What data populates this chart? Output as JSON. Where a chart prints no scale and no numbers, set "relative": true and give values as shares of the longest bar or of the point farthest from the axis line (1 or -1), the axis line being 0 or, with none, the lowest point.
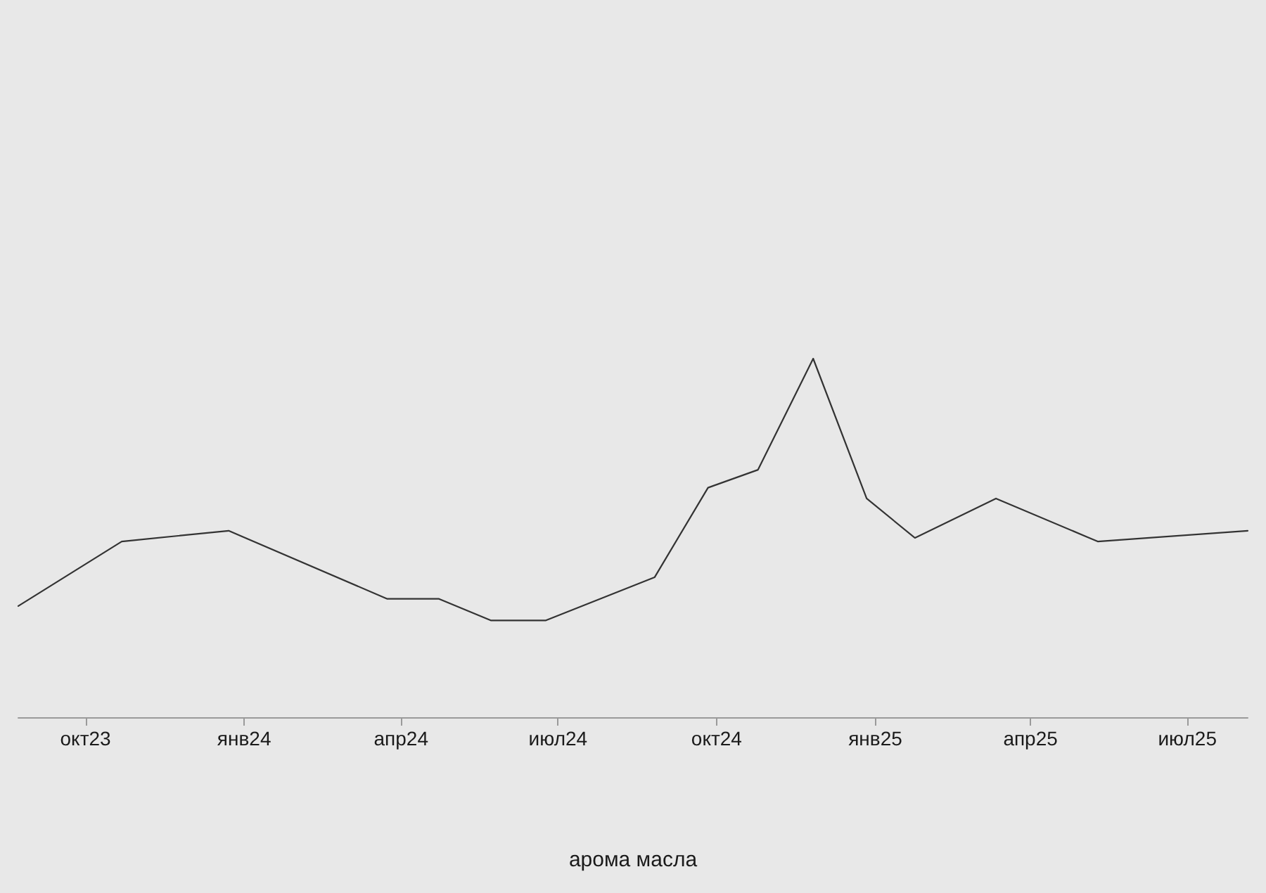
{
  "chart_data": {
    "type": "line",
    "relative": true,
    "annotations": [
      "арома масла"
    ],
    "x": [
      "2023-08-23",
      "2023-10-22",
      "2023-12-23",
      "2024-03-24",
      "2024-04-23",
      "2024-05-23",
      "2024-06-24",
      "2024-08-26",
      "2024-09-26",
      "2024-10-25",
      "2024-11-26",
      "2024-12-27",
      "2025-01-24",
      "2025-03-12",
      "2025-05-10",
      "2025-08-05"
    ],
    "series": [
      {
        "color": "#333333",
        "values": [
          0.31,
          0.49,
          0.52,
          0.33,
          0.33,
          0.27,
          0.27,
          0.39,
          0.64,
          0.69,
          1,
          0.61,
          0.5,
          0.61,
          0.49,
          0.52
        ]
      }
    ],
    "xlim": [
      "2023-08-23",
      "2025-08-05"
    ],
    "xticks": [
      {
        "value": "2023-10-01",
        "label": "окт23"
      },
      {
        "value": "2024-01-01",
        "label": "янв24"
      },
      {
        "value": "2024-04-01",
        "label": "апр24"
      },
      {
        "value": "2024-07-01",
        "label": "июл24"
      },
      {
        "value": "2024-10-01",
        "label": "окт24"
      },
      {
        "value": "2025-01-01",
        "label": "янв25"
      },
      {
        "value": "2025-04-01",
        "label": "апр25"
      },
      {
        "value": "2025-07-01",
        "label": "июл25"
      }
    ],
    "tick_labels": "x",
    "marker": "none",
    "line_style": "solid"
  }
}
